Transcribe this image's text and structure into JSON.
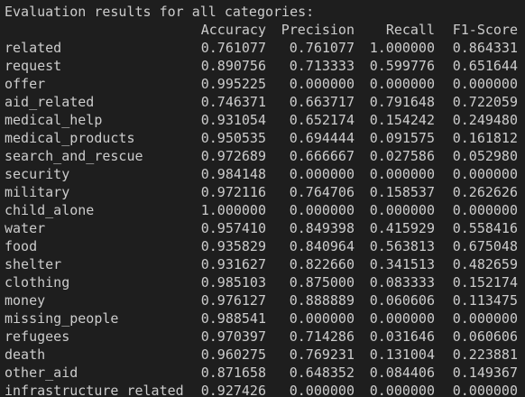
{
  "title": "Evaluation results for all categories:",
  "table": {
    "columns": [
      "Accuracy",
      "Precision",
      "Recall",
      "F1-Score"
    ],
    "rows": [
      [
        "related",
        "0.761077",
        "0.761077",
        "1.000000",
        "0.864331"
      ],
      [
        "request",
        "0.890756",
        "0.713333",
        "0.599776",
        "0.651644"
      ],
      [
        "offer",
        "0.995225",
        "0.000000",
        "0.000000",
        "0.000000"
      ],
      [
        "aid_related",
        "0.746371",
        "0.663717",
        "0.791648",
        "0.722059"
      ],
      [
        "medical_help",
        "0.931054",
        "0.652174",
        "0.154242",
        "0.249480"
      ],
      [
        "medical_products",
        "0.950535",
        "0.694444",
        "0.091575",
        "0.161812"
      ],
      [
        "search_and_rescue",
        "0.972689",
        "0.666667",
        "0.027586",
        "0.052980"
      ],
      [
        "security",
        "0.984148",
        "0.000000",
        "0.000000",
        "0.000000"
      ],
      [
        "military",
        "0.972116",
        "0.764706",
        "0.158537",
        "0.262626"
      ],
      [
        "child_alone",
        "1.000000",
        "0.000000",
        "0.000000",
        "0.000000"
      ],
      [
        "water",
        "0.957410",
        "0.849398",
        "0.415929",
        "0.558416"
      ],
      [
        "food",
        "0.935829",
        "0.840964",
        "0.563813",
        "0.675048"
      ],
      [
        "shelter",
        "0.931627",
        "0.822660",
        "0.341513",
        "0.482659"
      ],
      [
        "clothing",
        "0.985103",
        "0.875000",
        "0.083333",
        "0.152174"
      ],
      [
        "money",
        "0.976127",
        "0.888889",
        "0.060606",
        "0.113475"
      ],
      [
        "missing_people",
        "0.988541",
        "0.000000",
        "0.000000",
        "0.000000"
      ],
      [
        "refugees",
        "0.970397",
        "0.714286",
        "0.031646",
        "0.060606"
      ],
      [
        "death",
        "0.960275",
        "0.769231",
        "0.131004",
        "0.223881"
      ],
      [
        "other_aid",
        "0.871658",
        "0.648352",
        "0.084406",
        "0.149367"
      ],
      [
        "infrastructure_related",
        "0.927426",
        "0.000000",
        "0.000000",
        "0.000000"
      ]
    ]
  }
}
